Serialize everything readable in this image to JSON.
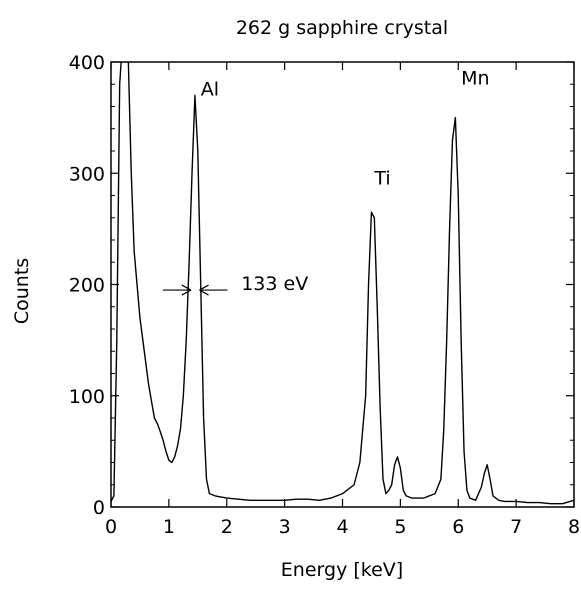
{
  "chart_data": {
    "type": "line",
    "title": "262 g sapphire crystal",
    "xlabel": "Energy [keV]",
    "ylabel": "Counts",
    "xlim": [
      0,
      8
    ],
    "ylim": [
      0,
      400
    ],
    "xticks": [
      0,
      1,
      2,
      3,
      4,
      5,
      6,
      7,
      8
    ],
    "yticks": [
      0,
      100,
      200,
      300,
      400
    ],
    "grid": false,
    "line_color": "#000000",
    "series": [
      {
        "x": [
          0.0,
          0.05,
          0.1,
          0.15,
          0.2,
          0.25,
          0.3,
          0.35,
          0.4,
          0.45,
          0.5,
          0.55,
          0.6,
          0.65,
          0.7,
          0.75,
          0.8,
          0.85,
          0.9,
          0.95,
          1.0,
          1.05,
          1.1,
          1.15,
          1.2,
          1.25,
          1.3,
          1.35,
          1.4,
          1.45,
          1.5,
          1.55,
          1.6,
          1.65,
          1.7,
          1.8,
          2.0,
          2.2,
          2.4,
          2.6,
          2.8,
          3.0,
          3.2,
          3.4,
          3.6,
          3.8,
          4.0,
          4.2,
          4.3,
          4.4,
          4.45,
          4.5,
          4.55,
          4.6,
          4.65,
          4.7,
          4.75,
          4.8,
          4.85,
          4.9,
          4.95,
          5.0,
          5.05,
          5.1,
          5.2,
          5.4,
          5.6,
          5.7,
          5.75,
          5.8,
          5.85,
          5.9,
          5.95,
          6.0,
          6.05,
          6.1,
          6.15,
          6.2,
          6.3,
          6.4,
          6.45,
          6.5,
          6.55,
          6.6,
          6.7,
          6.8,
          7.0,
          7.2,
          7.4,
          7.6,
          7.8,
          8.0
        ],
        "y": [
          5,
          10,
          150,
          380,
          420,
          420,
          400,
          300,
          230,
          200,
          170,
          150,
          130,
          110,
          95,
          80,
          75,
          68,
          60,
          50,
          42,
          40,
          45,
          55,
          70,
          100,
          150,
          220,
          300,
          370,
          320,
          200,
          80,
          25,
          12,
          10,
          8,
          7,
          6,
          6,
          6,
          6,
          7,
          7,
          6,
          8,
          12,
          20,
          40,
          100,
          200,
          265,
          260,
          180,
          90,
          25,
          12,
          15,
          20,
          38,
          45,
          35,
          15,
          10,
          8,
          8,
          12,
          25,
          70,
          150,
          250,
          330,
          350,
          280,
          150,
          50,
          15,
          8,
          6,
          18,
          30,
          38,
          25,
          10,
          6,
          5,
          5,
          4,
          4,
          3,
          3,
          6
        ]
      }
    ],
    "annotations": [
      {
        "text": "Al",
        "x": 1.55,
        "y": 370
      },
      {
        "text": "Ti",
        "x": 4.55,
        "y": 290
      },
      {
        "text": "Mn",
        "x": 6.05,
        "y": 380
      },
      {
        "text": "133 eV",
        "x": 2.25,
        "y": 195
      }
    ],
    "fwhm_marker": {
      "x_left": 1.38,
      "x_right": 1.53,
      "y": 195
    }
  }
}
